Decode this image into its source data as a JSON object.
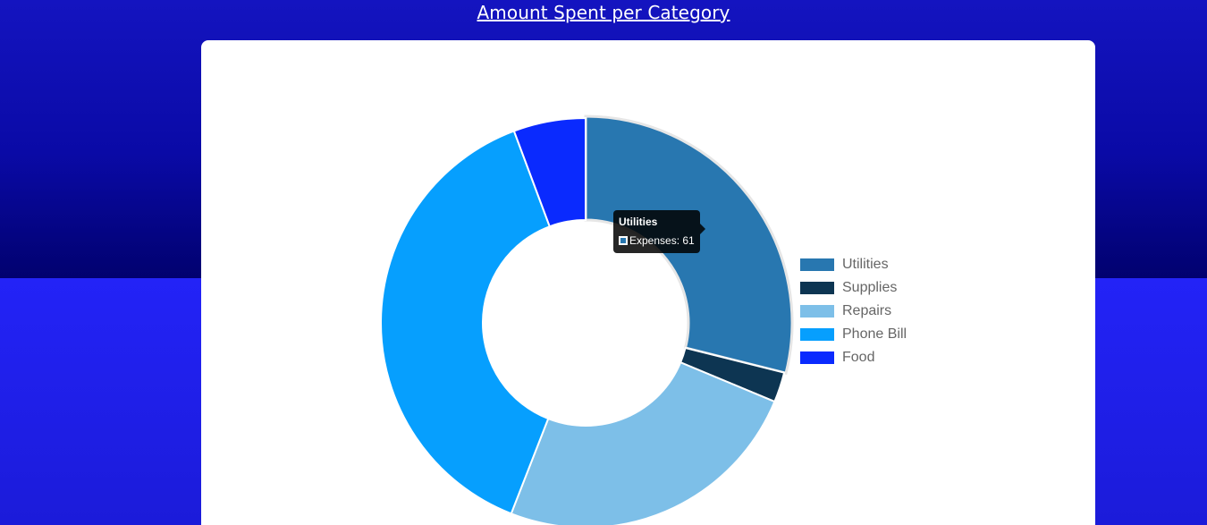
{
  "page": {
    "title": "Amount Spent per Category"
  },
  "tooltip": {
    "title": "Utilities",
    "body": "Expenses: 61",
    "color": "#2877b0"
  },
  "chart_data": {
    "type": "pie",
    "variant": "doughnut",
    "categories": [
      "Utilities",
      "Supplies",
      "Repairs",
      "Phone Bill",
      "Food"
    ],
    "series": [
      {
        "name": "Expenses",
        "values": [
          61,
          5,
          52,
          81,
          12
        ]
      }
    ],
    "colors": [
      "#2877b0",
      "#0d3552",
      "#7dbfe8",
      "#069ffe",
      "#0a2afe"
    ],
    "legend_position": "right",
    "start_angle": "top, clockwise"
  }
}
